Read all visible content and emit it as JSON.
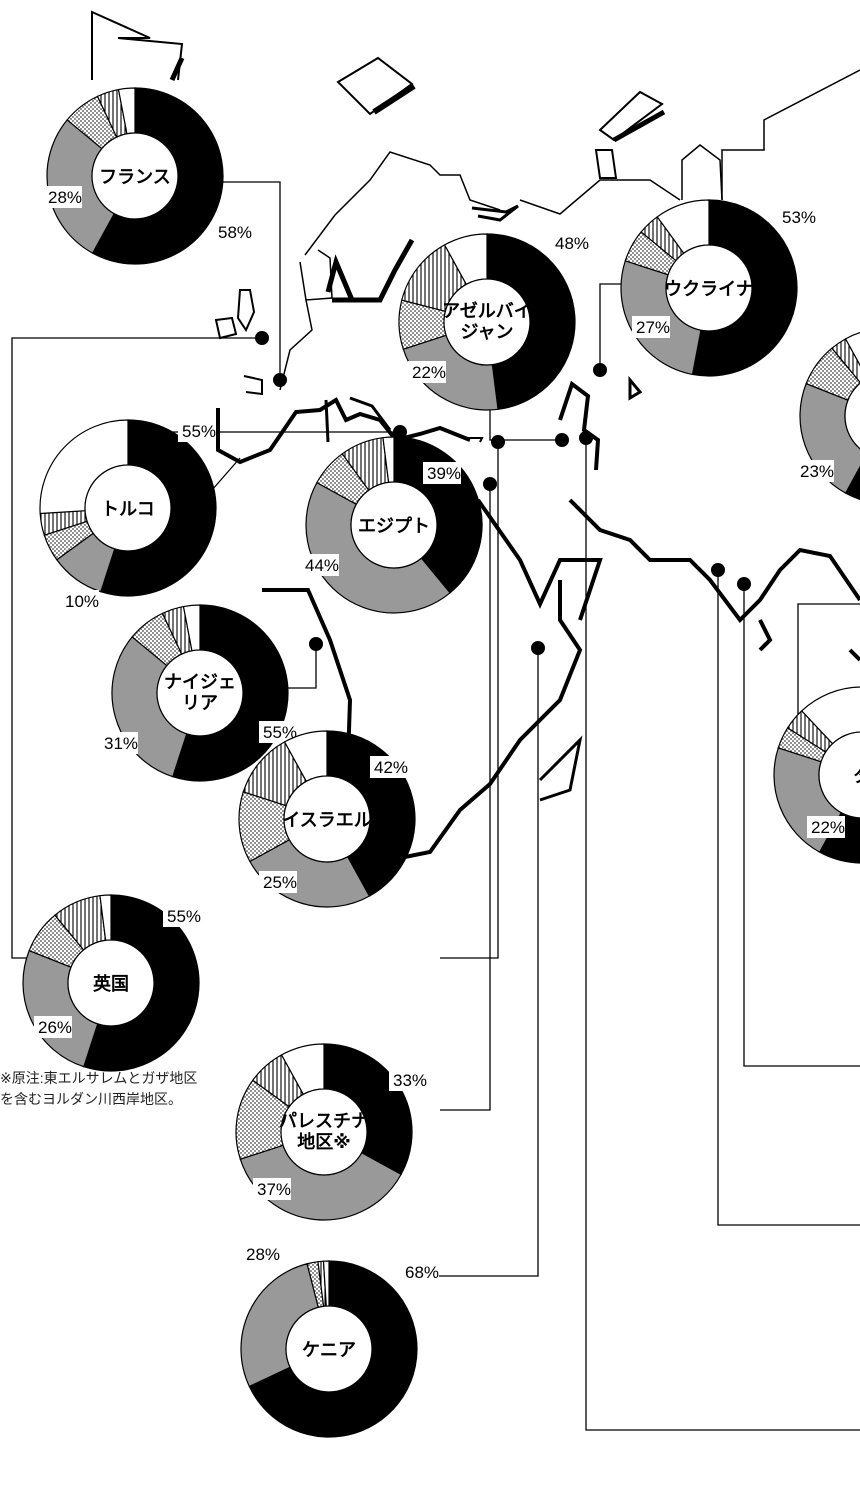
{
  "legend_note": "",
  "footnote": "※原注:東エルサレムとガザ地区を含むヨルダン川西岸地区。",
  "colors": {
    "black": "#000000",
    "gray": "#999999",
    "dotted": "pattern-dots",
    "hatched": "pattern-vertical-lines",
    "white": "#ffffff"
  },
  "chart_data": {
    "type": "pie",
    "variant": "donut",
    "series_order": [
      "black",
      "gray",
      "dotted",
      "hatched",
      "white"
    ],
    "countries": [
      {
        "name": "フランス",
        "slices": [
          58,
          28,
          7,
          4,
          3
        ],
        "labels": [
          "58%",
          "28%"
        ]
      },
      {
        "name": "アゼルバイジャン",
        "slices": [
          48,
          22,
          9,
          13,
          8
        ],
        "labels": [
          "48%",
          "22%"
        ]
      },
      {
        "name": "ウクライナ",
        "slices": [
          53,
          27,
          6,
          4,
          10
        ],
        "labels": [
          "53%",
          "27%"
        ]
      },
      {
        "name": "トルコ",
        "slices": [
          55,
          10,
          5,
          4,
          26
        ],
        "labels": [
          "55%",
          "10%"
        ]
      },
      {
        "name": "エジプト",
        "slices": [
          39,
          44,
          7,
          8,
          2
        ],
        "labels": [
          "39%",
          "44%"
        ]
      },
      {
        "name": "ナイジェリア",
        "slices": [
          55,
          31,
          7,
          4,
          3
        ],
        "labels": [
          "55%",
          "31%"
        ]
      },
      {
        "name": "英国",
        "slices": [
          55,
          26,
          8,
          9,
          2
        ],
        "labels": [
          "55%",
          "26%"
        ]
      },
      {
        "name": "イスラエル",
        "slices": [
          42,
          25,
          13,
          12,
          8
        ],
        "labels": [
          "42%",
          "25%"
        ]
      },
      {
        "name": "パレスチナ地区※",
        "slices": [
          33,
          37,
          15,
          7,
          8
        ],
        "labels": [
          "33%",
          "37%"
        ]
      },
      {
        "name": "ケニア",
        "slices": [
          68,
          28,
          2,
          1,
          1
        ],
        "labels": [
          "68%",
          "28%"
        ]
      },
      {
        "name": "",
        "slices": [
          58,
          23,
          8,
          3,
          8
        ],
        "labels": [
          "23%"
        ]
      },
      {
        "name": "タ",
        "slices": [
          58,
          22,
          4,
          4,
          12
        ],
        "labels": [
          "22%"
        ]
      }
    ]
  }
}
